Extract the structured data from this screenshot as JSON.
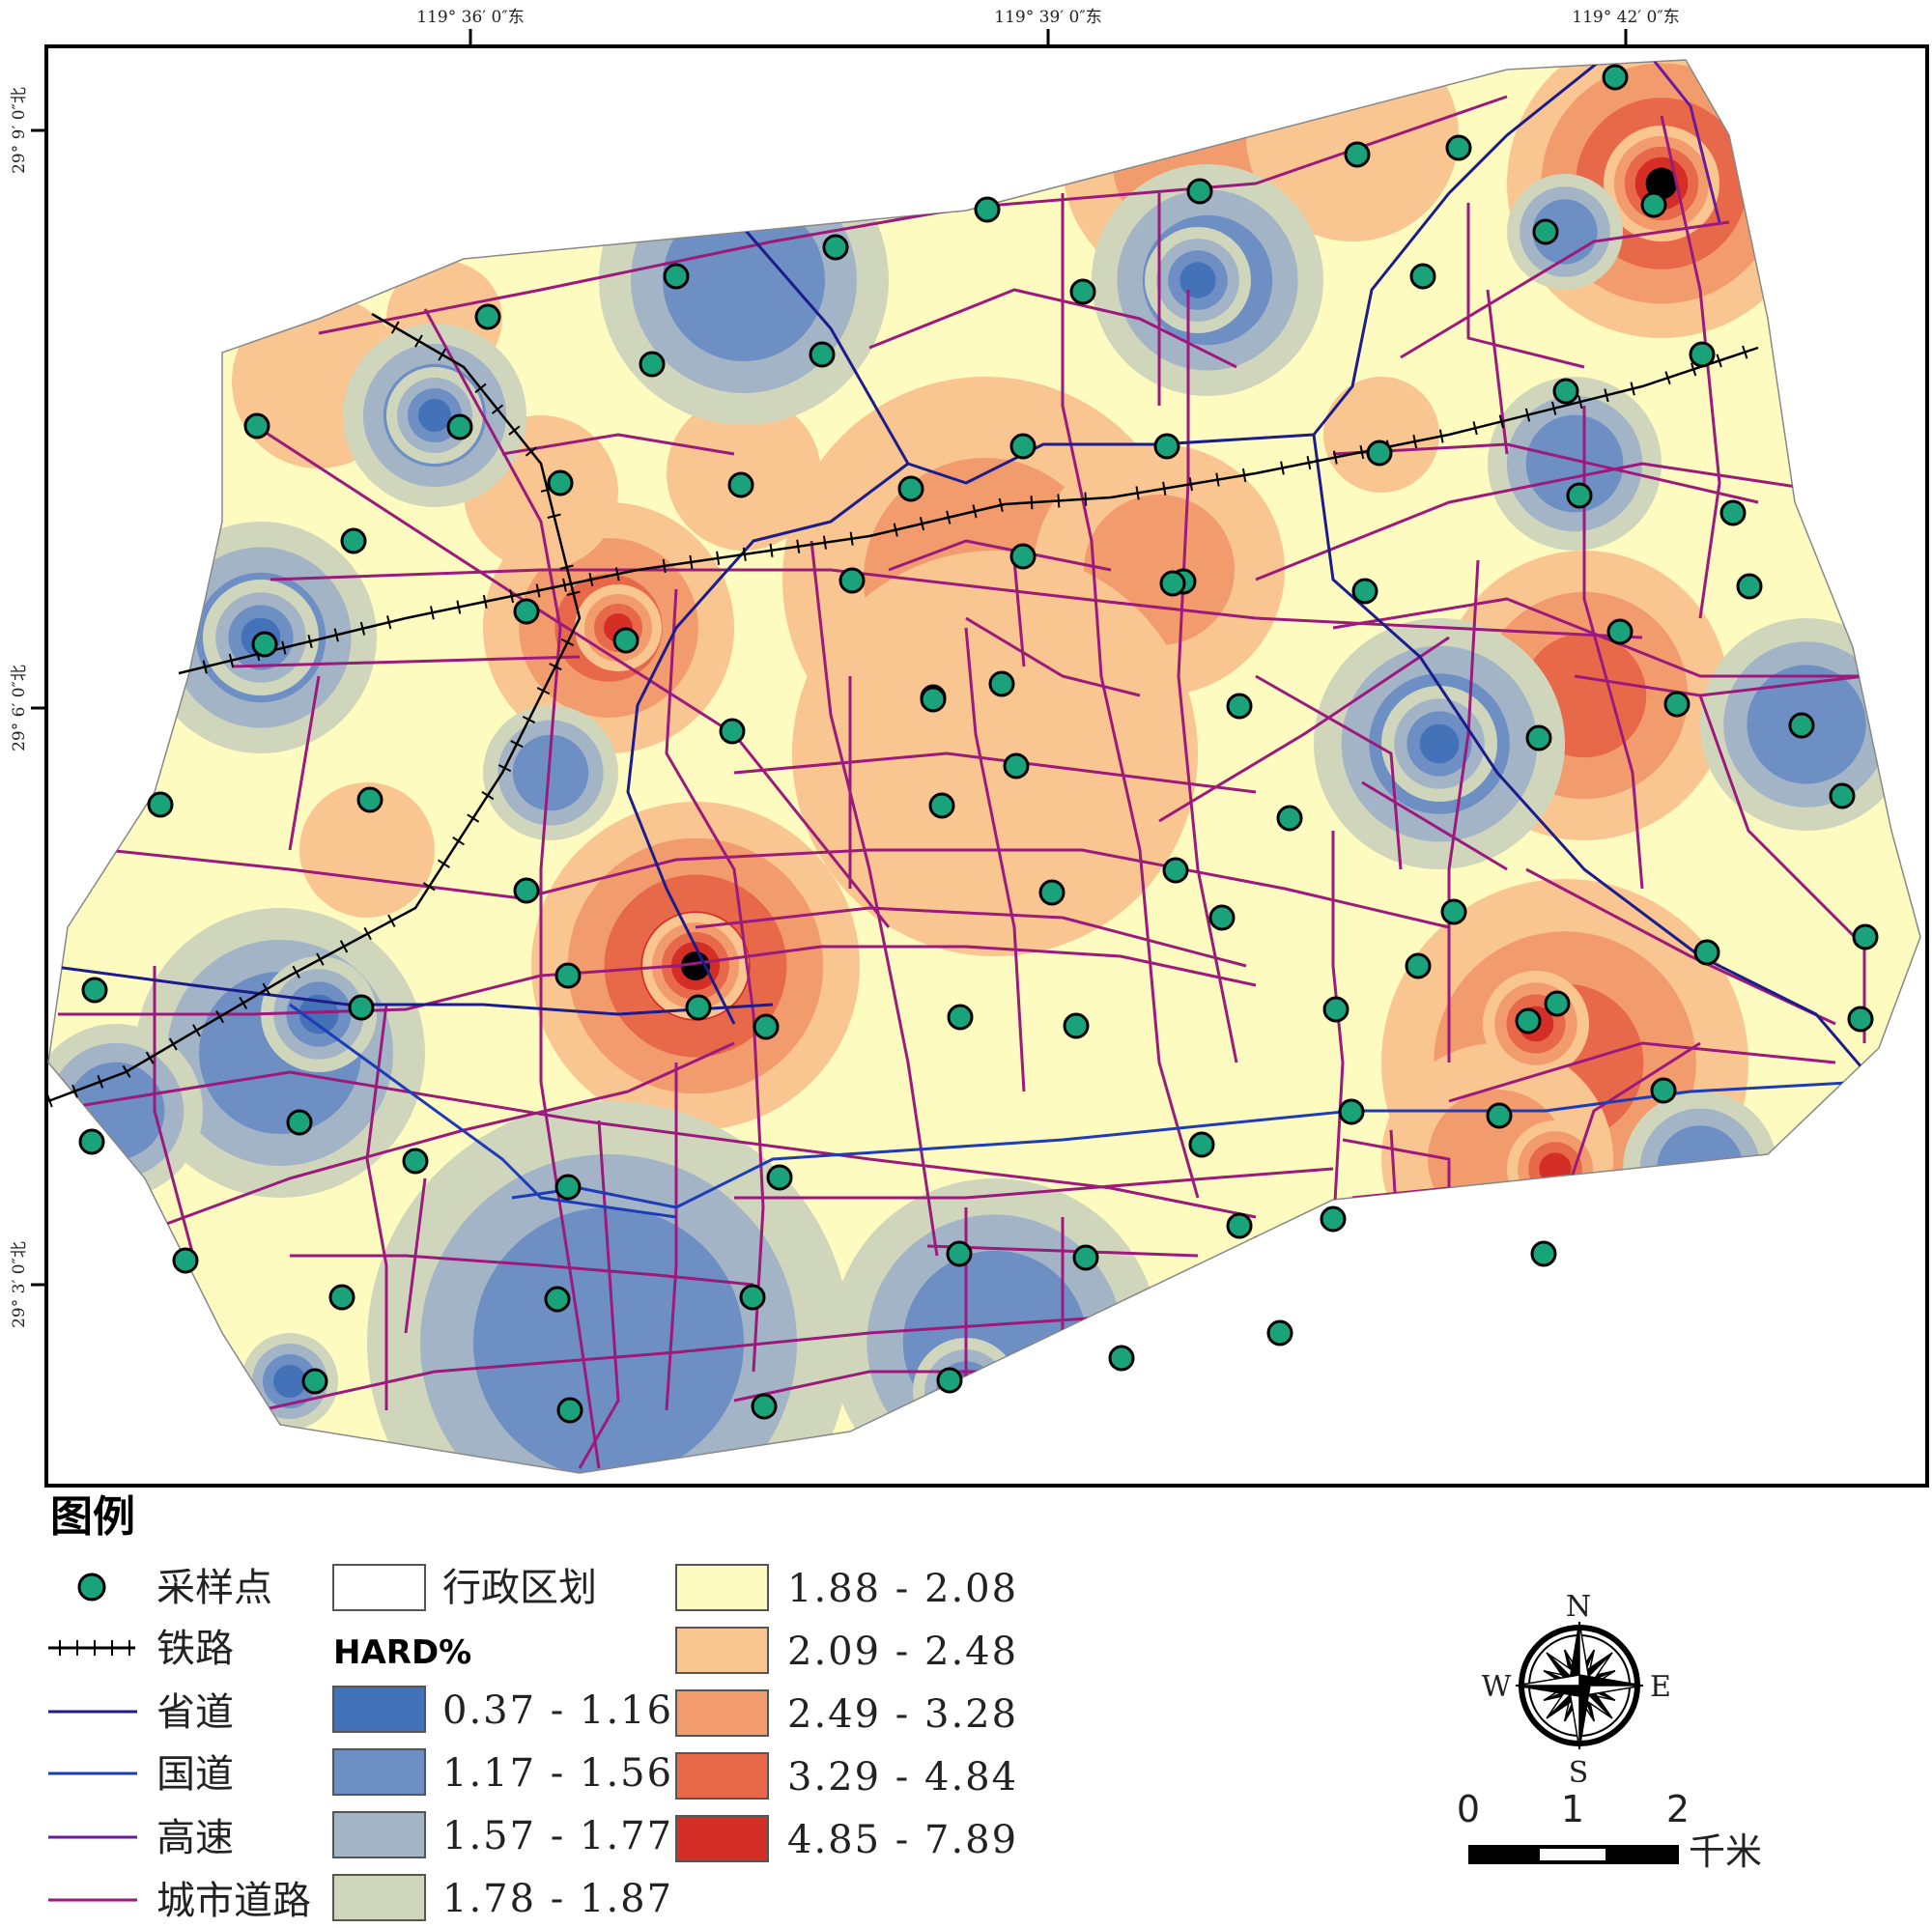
{
  "map": {
    "top_ticks": [
      "119° 36′ 0″东",
      "119° 39′ 0″东",
      "119° 42′ 0″东"
    ],
    "left_ticks": [
      "29° 9′ 0″北",
      "29° 6′ 0″北",
      "29° 3′ 0″北"
    ]
  },
  "legend": {
    "title": "图例",
    "symbols": [
      {
        "label": "采样点",
        "kind": "point",
        "color": "#1aa37a"
      },
      {
        "label": "铁路",
        "kind": "rail",
        "color": "#000000"
      },
      {
        "label": "省道",
        "kind": "line",
        "color": "#1c1c8c"
      },
      {
        "label": "国道",
        "kind": "line",
        "color": "#1e3cb8"
      },
      {
        "label": "高速",
        "kind": "line",
        "color": "#6a1a9a"
      },
      {
        "label": "城市道路",
        "kind": "line",
        "color": "#9c1a7c"
      }
    ],
    "boundary_label": "行政区划",
    "field_label": "HARD%",
    "classes": [
      {
        "range": "0.37 - 1.16",
        "color": "#4472b8"
      },
      {
        "range": "1.17 - 1.56",
        "color": "#6d8fc4"
      },
      {
        "range": "1.57 - 1.77",
        "color": "#a3b4c6"
      },
      {
        "range": "1.78 - 1.87",
        "color": "#cfd6bc"
      },
      {
        "range": "1.88 - 2.08",
        "color": "#fefbc0"
      },
      {
        "range": "2.09 - 2.48",
        "color": "#f9c590"
      },
      {
        "range": "2.49 - 3.28",
        "color": "#f29b6c"
      },
      {
        "range": "3.29 - 4.84",
        "color": "#e8694a"
      },
      {
        "range": "4.85 - 7.89",
        "color": "#d42e27"
      }
    ]
  },
  "compass": {
    "n": "N",
    "s": "S",
    "e": "E",
    "w": "W"
  },
  "scale": {
    "ticks": [
      "0",
      "1",
      "2"
    ],
    "unit": "千米"
  }
}
